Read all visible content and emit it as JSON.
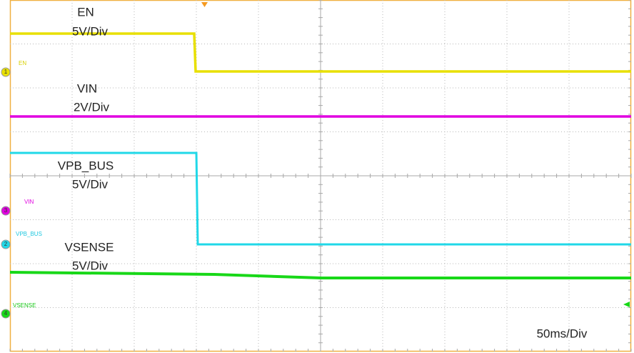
{
  "traces": [
    {
      "label": "EN",
      "scale": "5V/Div",
      "marker": "1",
      "tag": "EN"
    },
    {
      "label": "VIN",
      "scale": "2V/Div",
      "marker": "3",
      "tag": "VIN"
    },
    {
      "label": "VPB_BUS",
      "scale": "5V/Div",
      "marker": "2",
      "tag": "VPB_BUS"
    },
    {
      "label": "VSENSE",
      "scale": "5V/Div",
      "marker": "4",
      "tag": "VSENSE"
    }
  ],
  "timebase": "50ms/Div"
}
